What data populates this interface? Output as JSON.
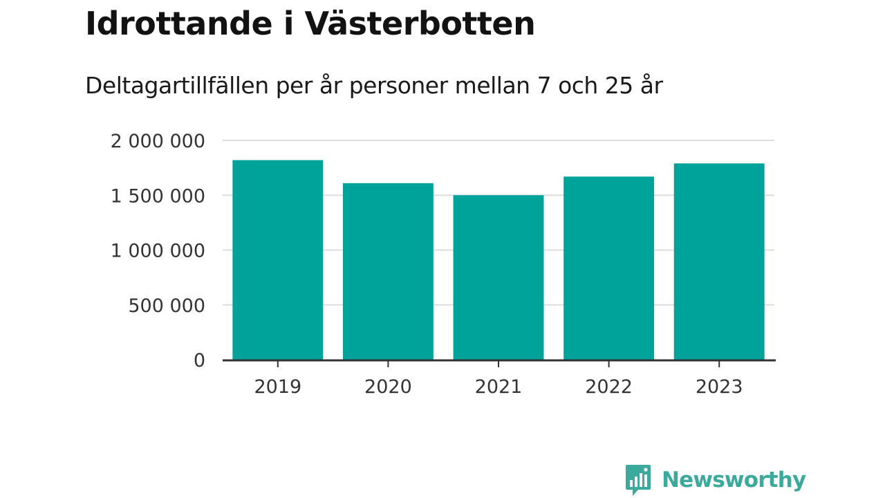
{
  "header": {
    "title": "Idrottande i Västerbotten",
    "subtitle": "Deltagartillfällen per år personer mellan 7 och 25 år"
  },
  "brand": {
    "name": "Newsworthy",
    "icon": "newsworthy-logo-icon",
    "color": "#3ba99c"
  },
  "colors": {
    "bar": "#00a39a",
    "grid": "#dddddd",
    "axis": "#333333"
  },
  "chart_data": {
    "type": "bar",
    "categories": [
      "2019",
      "2020",
      "2021",
      "2022",
      "2023"
    ],
    "values": [
      1820000,
      1610000,
      1500000,
      1670000,
      1790000
    ],
    "ylim": [
      0,
      2000000
    ],
    "yticks": [
      0,
      500000,
      1000000,
      1500000,
      2000000
    ],
    "ytick_labels": [
      "0",
      "500 000",
      "1 000 000",
      "1 500 000",
      "2 000 000"
    ],
    "grid": true,
    "legend": false
  }
}
